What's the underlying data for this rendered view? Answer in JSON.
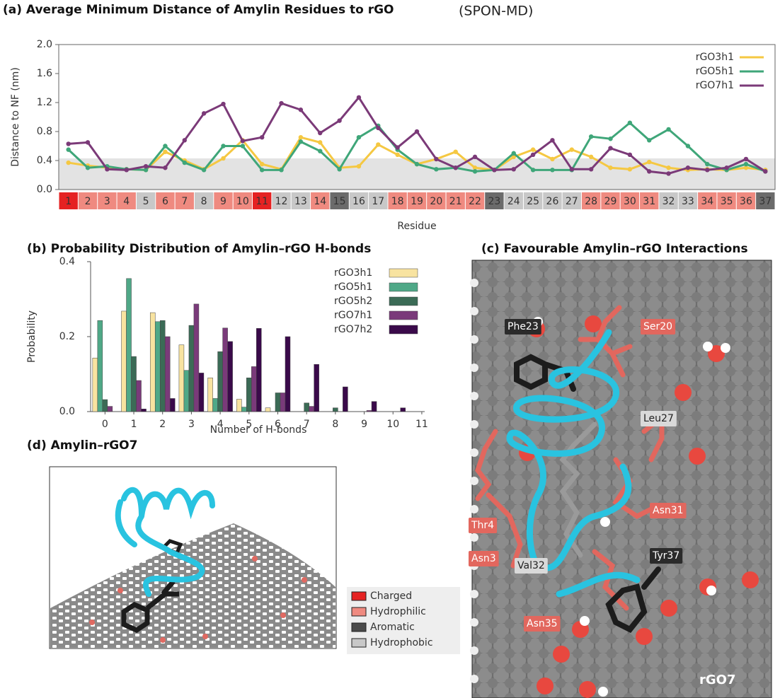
{
  "chart_data": [
    {
      "type": "line",
      "title": "(a) Average Minimum Distance of Amylin Residues to rGO",
      "subtitle": "(SPON-MD)",
      "x_label": "Residue",
      "y_label": "Distance to NF (nm)",
      "categories": [
        "1",
        "2",
        "3",
        "4",
        "5",
        "6",
        "7",
        "8",
        "9",
        "10",
        "11",
        "12",
        "13",
        "14",
        "15",
        "16",
        "17",
        "18",
        "19",
        "20",
        "21",
        "22",
        "23",
        "24",
        "25",
        "26",
        "27",
        "28",
        "29",
        "30",
        "31",
        "32",
        "33",
        "34",
        "35",
        "36",
        "37"
      ],
      "category_colors": [
        "#e52222",
        "#ef8a80",
        "#ef8a80",
        "#ef8a80",
        "#c8c8c8",
        "#ef8a80",
        "#ef8a80",
        "#c8c8c8",
        "#ef8a80",
        "#ef8a80",
        "#e52222",
        "#c8c8c8",
        "#c8c8c8",
        "#ef8a80",
        "#6b6b6b",
        "#c8c8c8",
        "#c8c8c8",
        "#ef8a80",
        "#ef8a80",
        "#ef8a80",
        "#ef8a80",
        "#ef8a80",
        "#6b6b6b",
        "#c8c8c8",
        "#c8c8c8",
        "#c8c8c8",
        "#c8c8c8",
        "#ef8a80",
        "#ef8a80",
        "#ef8a80",
        "#ef8a80",
        "#c8c8c8",
        "#c8c8c8",
        "#ef8a80",
        "#ef8a80",
        "#ef8a80",
        "#6b6b6b"
      ],
      "band": [
        0,
        0.43
      ],
      "band_color": "#e3e3e3",
      "ylim": [
        0,
        2
      ],
      "yticks": [
        {
          "value": 0,
          "label": "0.0"
        },
        0.4,
        0.8,
        1.2,
        1.6,
        {
          "value": 2,
          "label": "2.0"
        }
      ],
      "legend": "upper right",
      "series": [
        {
          "name": "rGO3h1",
          "color": "#f5c842",
          "values": [
            0.37,
            0.33,
            0.3,
            0.28,
            0.27,
            0.52,
            0.4,
            0.28,
            0.43,
            0.68,
            0.35,
            0.28,
            0.72,
            0.65,
            0.3,
            0.32,
            0.62,
            0.48,
            0.35,
            0.42,
            0.52,
            0.3,
            0.27,
            0.45,
            0.55,
            0.42,
            0.55,
            0.45,
            0.3,
            0.28,
            0.38,
            0.3,
            0.27,
            0.28,
            0.27,
            0.3,
            0.27
          ]
        },
        {
          "name": "rGO5h1",
          "color": "#3fa679",
          "values": [
            0.55,
            0.3,
            0.32,
            0.28,
            0.27,
            0.6,
            0.37,
            0.27,
            0.6,
            0.6,
            0.27,
            0.27,
            0.66,
            0.53,
            0.28,
            0.72,
            0.88,
            0.55,
            0.35,
            0.28,
            0.3,
            0.25,
            0.27,
            0.5,
            0.27,
            0.27,
            0.27,
            0.73,
            0.7,
            0.92,
            0.68,
            0.83,
            0.6,
            0.35,
            0.27,
            0.35,
            0.25
          ]
        },
        {
          "name": "rGO7h1",
          "color": "#7b3a78",
          "values": [
            0.63,
            0.65,
            0.28,
            0.27,
            0.32,
            0.3,
            0.68,
            1.05,
            1.18,
            0.67,
            0.72,
            1.19,
            1.1,
            0.78,
            0.95,
            1.27,
            0.85,
            0.58,
            0.8,
            0.42,
            0.3,
            0.45,
            0.27,
            0.28,
            0.48,
            0.68,
            0.28,
            0.28,
            0.57,
            0.48,
            0.25,
            0.22,
            0.3,
            0.27,
            0.3,
            0.42,
            0.25
          ]
        }
      ]
    },
    {
      "type": "bar",
      "title": "(b) Probability Distribution of Amylin–rGO H-bonds",
      "x_label": "Number of H-bonds",
      "y_label": "Probability",
      "x": [
        0,
        1,
        2,
        3,
        4,
        5,
        6,
        7,
        8,
        9,
        10
      ],
      "xlim": [
        -0.5,
        11.1
      ],
      "xticks": [
        0,
        1,
        2,
        3,
        4,
        5,
        6,
        7,
        8,
        9,
        10,
        11
      ],
      "ylim": [
        0,
        0.4
      ],
      "yticks": [
        {
          "value": 0,
          "label": "0.0"
        },
        0.2,
        0.4
      ],
      "legend": "upper right",
      "series": [
        {
          "name": "rGO3h1",
          "color": "#f8e3a0",
          "values": [
            0.143,
            0.268,
            0.264,
            0.178,
            0.09,
            0.033,
            0.01,
            0,
            0,
            0,
            0
          ]
        },
        {
          "name": "rGO5h1",
          "color": "#4fa887",
          "values": [
            0.243,
            0.355,
            0.24,
            0.11,
            0.035,
            0.012,
            0,
            0,
            0,
            0,
            0
          ]
        },
        {
          "name": "rGO5h2",
          "color": "#3b6b56",
          "values": [
            0.032,
            0.147,
            0.243,
            0.23,
            0.16,
            0.09,
            0.05,
            0.023,
            0.01,
            0,
            0
          ]
        },
        {
          "name": "rGO7h1",
          "color": "#7a3a7a",
          "values": [
            0.014,
            0.083,
            0.2,
            0.287,
            0.223,
            0.12,
            0.05,
            0.014,
            0,
            0.003,
            0
          ]
        },
        {
          "name": "rGO7h2",
          "color": "#3a0a4a",
          "values": [
            0,
            0.007,
            0.035,
            0.103,
            0.187,
            0.222,
            0.2,
            0.126,
            0.066,
            0.027,
            0.01
          ]
        }
      ]
    }
  ],
  "panel_c": {
    "title": "(c) Favourable Amylin–rGO Interactions",
    "labels": [
      {
        "text": "Phe23",
        "color": "#2b2b2b"
      },
      {
        "text": "Ser20",
        "color": "#e2675e"
      },
      {
        "text": "Leu27",
        "color": "#d9d9d9"
      },
      {
        "text": "Asn31",
        "color": "#e2675e"
      },
      {
        "text": "Thr4",
        "color": "#e2675e"
      },
      {
        "text": "Asn3",
        "color": "#e2675e"
      },
      {
        "text": "Val32",
        "color": "#d9d9d9"
      },
      {
        "text": "Tyr37",
        "color": "#2b2b2b"
      },
      {
        "text": "Asn35",
        "color": "#e2675e"
      }
    ],
    "sheet_label": "rGO7"
  },
  "panel_d": {
    "title": "(d) Amylin–rGO7"
  },
  "residue_legend": [
    {
      "label": "Charged",
      "color": "#e52222"
    },
    {
      "label": "Hydrophilic",
      "color": "#ef8a80"
    },
    {
      "label": "Aromatic",
      "color": "#4a4a4a"
    },
    {
      "label": "Hydrophobic",
      "color": "#c8c8c8"
    }
  ]
}
